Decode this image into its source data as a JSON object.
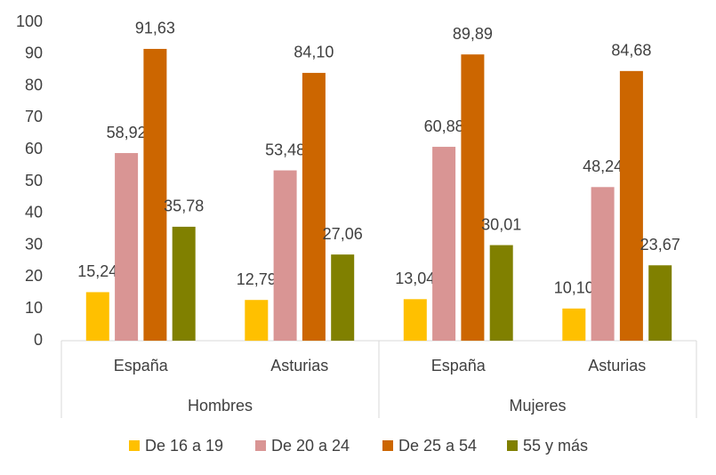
{
  "chart_data": {
    "type": "bar",
    "groups": [
      {
        "name": "Hombres",
        "categories": [
          "España",
          "Asturias"
        ]
      },
      {
        "name": "Mujeres",
        "categories": [
          "España",
          "Asturias"
        ]
      }
    ],
    "series": [
      {
        "name": "De 16 a 19",
        "color": "#ffc000",
        "values": [
          15.24,
          12.79,
          13.04,
          10.1
        ],
        "value_labels": [
          "15,24",
          "12,79",
          "13,04",
          "10,10"
        ]
      },
      {
        "name": "De 20 a 24",
        "color": "#d99594",
        "values": [
          58.92,
          53.48,
          60.88,
          48.24
        ],
        "value_labels": [
          "58,92",
          "53,48",
          "60,88",
          "48,24"
        ]
      },
      {
        "name": "De 25 a 54",
        "color": "#cc6600",
        "values": [
          91.63,
          84.1,
          89.89,
          84.68
        ],
        "value_labels": [
          "91,63",
          "84,10",
          "89,89",
          "84,68"
        ]
      },
      {
        "name": "55 y más",
        "color": "#808000",
        "values": [
          35.78,
          27.06,
          30.01,
          23.67
        ],
        "value_labels": [
          "35,78",
          "27,06",
          "30,01",
          "23,67"
        ]
      }
    ],
    "ylim": [
      0,
      100
    ],
    "yticks": [
      0,
      10,
      20,
      30,
      40,
      50,
      60,
      70,
      80,
      90,
      100
    ],
    "legend": "bottom"
  }
}
